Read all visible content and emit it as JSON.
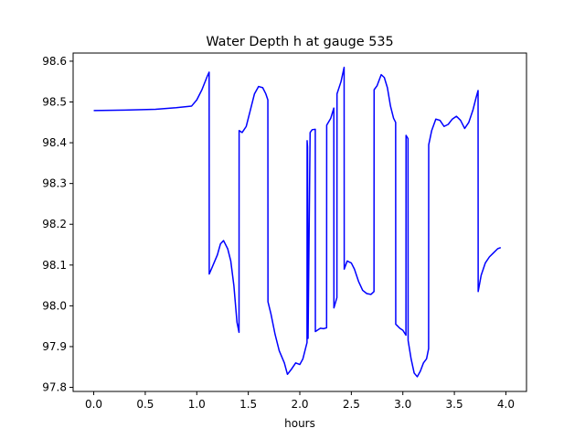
{
  "chart_data": {
    "type": "line",
    "title": "Water Depth h at gauge 535",
    "xlabel": "hours",
    "ylabel": "",
    "xlim": [
      -0.2,
      4.2
    ],
    "ylim": [
      97.79,
      98.62
    ],
    "xticks": [
      0.0,
      0.5,
      1.0,
      1.5,
      2.0,
      2.5,
      3.0,
      3.5,
      4.0
    ],
    "xtick_labels": [
      "0.0",
      "0.5",
      "1.0",
      "1.5",
      "2.0",
      "2.5",
      "3.0",
      "3.5",
      "4.0"
    ],
    "yticks": [
      97.8,
      97.9,
      98.0,
      98.1,
      98.2,
      98.3,
      98.4,
      98.5,
      98.6
    ],
    "ytick_labels": [
      "97.8",
      "97.9",
      "98.0",
      "98.1",
      "98.2",
      "98.3",
      "98.4",
      "98.5",
      "98.6"
    ],
    "grid": false,
    "series": [
      {
        "color": "#0000ff",
        "points": [
          [
            0.0,
            98.479
          ],
          [
            0.3,
            98.48
          ],
          [
            0.6,
            98.482
          ],
          [
            0.8,
            98.486
          ],
          [
            0.95,
            98.49
          ],
          [
            1.0,
            98.505
          ],
          [
            1.05,
            98.53
          ],
          [
            1.1,
            98.562
          ],
          [
            1.12,
            98.573
          ],
          [
            1.121,
            98.078
          ],
          [
            1.15,
            98.095
          ],
          [
            1.2,
            98.125
          ],
          [
            1.23,
            98.152
          ],
          [
            1.26,
            98.16
          ],
          [
            1.3,
            98.14
          ],
          [
            1.33,
            98.11
          ],
          [
            1.36,
            98.05
          ],
          [
            1.39,
            97.96
          ],
          [
            1.41,
            97.935
          ],
          [
            1.411,
            98.43
          ],
          [
            1.44,
            98.425
          ],
          [
            1.48,
            98.44
          ],
          [
            1.52,
            98.48
          ],
          [
            1.56,
            98.52
          ],
          [
            1.6,
            98.538
          ],
          [
            1.64,
            98.535
          ],
          [
            1.67,
            98.52
          ],
          [
            1.69,
            98.505
          ],
          [
            1.691,
            98.01
          ],
          [
            1.72,
            97.98
          ],
          [
            1.76,
            97.93
          ],
          [
            1.8,
            97.89
          ],
          [
            1.85,
            97.86
          ],
          [
            1.88,
            97.832
          ],
          [
            1.92,
            97.845
          ],
          [
            1.96,
            97.86
          ],
          [
            2.0,
            97.856
          ],
          [
            2.03,
            97.87
          ],
          [
            2.06,
            97.9
          ],
          [
            2.07,
            97.91
          ],
          [
            2.071,
            98.405
          ],
          [
            2.075,
            98.39
          ],
          [
            2.08,
            97.92
          ],
          [
            2.1,
            98.425
          ],
          [
            2.12,
            98.432
          ],
          [
            2.15,
            98.433
          ],
          [
            2.151,
            97.937
          ],
          [
            2.2,
            97.945
          ],
          [
            2.23,
            97.944
          ],
          [
            2.26,
            97.946
          ],
          [
            2.261,
            98.443
          ],
          [
            2.3,
            98.46
          ],
          [
            2.33,
            98.485
          ],
          [
            2.331,
            97.995
          ],
          [
            2.36,
            98.02
          ],
          [
            2.361,
            98.52
          ],
          [
            2.4,
            98.55
          ],
          [
            2.43,
            98.585
          ],
          [
            2.431,
            98.09
          ],
          [
            2.46,
            98.11
          ],
          [
            2.5,
            98.105
          ],
          [
            2.53,
            98.09
          ],
          [
            2.57,
            98.06
          ],
          [
            2.61,
            98.038
          ],
          [
            2.65,
            98.03
          ],
          [
            2.69,
            98.028
          ],
          [
            2.72,
            98.035
          ],
          [
            2.721,
            98.53
          ],
          [
            2.75,
            98.54
          ],
          [
            2.79,
            98.567
          ],
          [
            2.82,
            98.56
          ],
          [
            2.85,
            98.535
          ],
          [
            2.88,
            98.49
          ],
          [
            2.91,
            98.46
          ],
          [
            2.93,
            98.45
          ],
          [
            2.931,
            97.955
          ],
          [
            2.97,
            97.945
          ],
          [
            3.0,
            97.94
          ],
          [
            3.03,
            97.928
          ],
          [
            3.031,
            98.418
          ],
          [
            3.05,
            98.41
          ],
          [
            3.051,
            97.915
          ],
          [
            3.08,
            97.87
          ],
          [
            3.11,
            97.835
          ],
          [
            3.14,
            97.826
          ],
          [
            3.17,
            97.84
          ],
          [
            3.2,
            97.86
          ],
          [
            3.23,
            97.87
          ],
          [
            3.25,
            97.895
          ],
          [
            3.251,
            98.395
          ],
          [
            3.28,
            98.43
          ],
          [
            3.32,
            98.458
          ],
          [
            3.36,
            98.455
          ],
          [
            3.4,
            98.44
          ],
          [
            3.44,
            98.445
          ],
          [
            3.48,
            98.458
          ],
          [
            3.52,
            98.465
          ],
          [
            3.56,
            98.455
          ],
          [
            3.6,
            98.435
          ],
          [
            3.64,
            98.45
          ],
          [
            3.68,
            98.48
          ],
          [
            3.71,
            98.51
          ],
          [
            3.73,
            98.528
          ],
          [
            3.731,
            98.035
          ],
          [
            3.76,
            98.075
          ],
          [
            3.8,
            98.105
          ],
          [
            3.84,
            98.12
          ],
          [
            3.88,
            98.13
          ],
          [
            3.92,
            98.14
          ],
          [
            3.95,
            98.143
          ]
        ]
      }
    ]
  }
}
